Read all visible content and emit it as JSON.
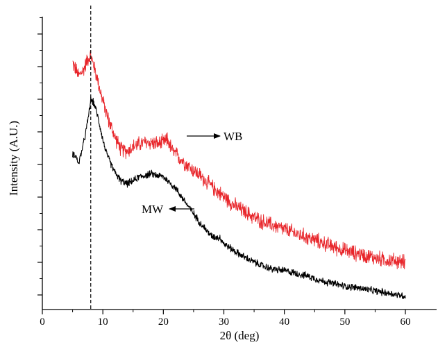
{
  "chart_data": {
    "type": "line",
    "title": "",
    "xlabel": "2θ (deg)",
    "ylabel": "Intensity (A.U.)",
    "xlim": [
      0,
      65
    ],
    "ylim": [
      0,
      1
    ],
    "x_ticks": [
      0,
      10,
      20,
      30,
      40,
      50,
      60
    ],
    "x_tick_labels": [
      "0",
      "10",
      "20",
      "30",
      "40",
      "50",
      "60"
    ],
    "y_tick_labels_shown": false,
    "grid": false,
    "legend": "none",
    "reference_line": {
      "x": 8.0,
      "style": "dashed",
      "color": "#000000"
    },
    "series": [
      {
        "name": "WB",
        "color": "#e8262b",
        "noise": 0.022,
        "x": [
          5,
          6,
          6.8,
          7.5,
          8,
          8.5,
          9.2,
          10,
          11,
          12,
          13,
          14,
          15,
          16,
          17,
          18,
          19,
          20,
          20.7,
          21.5,
          22.5,
          24,
          26,
          28,
          30,
          32,
          34,
          36,
          38,
          40,
          42,
          44,
          46,
          48,
          50,
          52,
          54,
          56,
          58,
          60
        ],
        "y": [
          0.84,
          0.795,
          0.815,
          0.855,
          0.865,
          0.83,
          0.775,
          0.705,
          0.635,
          0.58,
          0.535,
          0.53,
          0.545,
          0.555,
          0.56,
          0.56,
          0.555,
          0.56,
          0.57,
          0.53,
          0.51,
          0.48,
          0.445,
          0.405,
          0.37,
          0.335,
          0.31,
          0.285,
          0.27,
          0.255,
          0.24,
          0.225,
          0.21,
          0.195,
          0.18,
          0.17,
          0.16,
          0.15,
          0.145,
          0.14
        ]
      },
      {
        "name": "MW",
        "color": "#000000",
        "noise": 0.01,
        "x": [
          5,
          5.5,
          6,
          6.5,
          7,
          7.5,
          8,
          8.5,
          9,
          9.5,
          10,
          10.5,
          11,
          12,
          13,
          14,
          15,
          16,
          17,
          18,
          19,
          20,
          21,
          22,
          23,
          24,
          25,
          26,
          27,
          28,
          29.4,
          30,
          32,
          34,
          36,
          38,
          40,
          42,
          44,
          46,
          48,
          50,
          52,
          54,
          56,
          58,
          60
        ],
        "y": [
          0.52,
          0.515,
          0.485,
          0.53,
          0.575,
          0.635,
          0.71,
          0.7,
          0.665,
          0.62,
          0.57,
          0.53,
          0.5,
          0.455,
          0.425,
          0.415,
          0.425,
          0.44,
          0.445,
          0.45,
          0.445,
          0.44,
          0.42,
          0.4,
          0.37,
          0.34,
          0.31,
          0.28,
          0.255,
          0.23,
          0.225,
          0.205,
          0.175,
          0.15,
          0.13,
          0.115,
          0.11,
          0.1,
          0.09,
          0.075,
          0.065,
          0.055,
          0.05,
          0.042,
          0.035,
          0.028,
          0.02
        ]
      }
    ],
    "annotations": [
      {
        "text": "WB",
        "target_series": "WB",
        "arrow": "right"
      },
      {
        "text": "MW",
        "target_series": "MW",
        "arrow": "left"
      }
    ]
  }
}
